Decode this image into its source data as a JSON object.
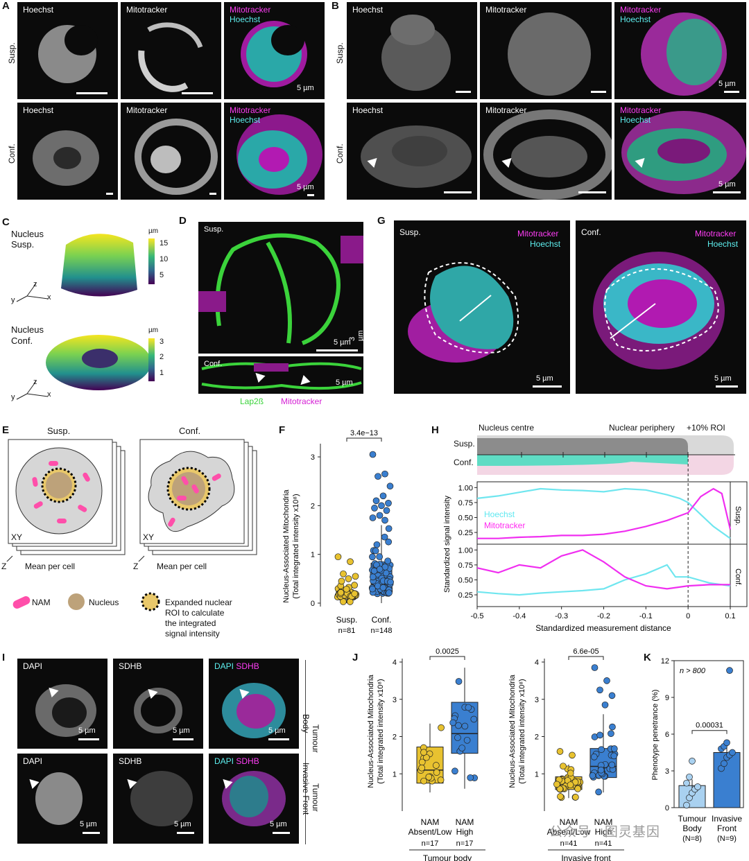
{
  "panels": {
    "A": {
      "letter": "A",
      "rows": [
        "Susp.",
        "Conf."
      ],
      "ch1": "Hoechst",
      "ch2": "Mitotracker",
      "merge_top": "Mitotracker",
      "merge_bot": "Hoechst",
      "scale": "5 µm"
    },
    "B": {
      "letter": "B",
      "rows": [
        "Susp.",
        "Conf."
      ],
      "ch1": "Hoechst",
      "ch2": "Mitotracker",
      "merge_top": "Mitotracker",
      "merge_bot": "Hoechst",
      "scale": "5 µm"
    },
    "C": {
      "letter": "C",
      "top_title": "Nucleus",
      "top_sub": "Susp.",
      "bot_title": "Nucleus",
      "bot_sub": "Conf.",
      "unit": "µm",
      "top_ticks": [
        "15",
        "10",
        "5"
      ],
      "bot_ticks": [
        "3",
        "2",
        "1"
      ],
      "axis_z": "z",
      "axis_y": "y",
      "axis_x": "x"
    },
    "D": {
      "letter": "D",
      "top": "Susp.",
      "bot": "Conf.",
      "scale_z": "3 µm",
      "scale_xy": "5 µm",
      "legend_green": "Lap2ß",
      "legend_magenta": "Mitotracker"
    },
    "G": {
      "letter": "G",
      "left": "Susp.",
      "right": "Conf.",
      "ch_mag": "Mitotracker",
      "ch_cy": "Hoechst",
      "scale": "5 µm"
    },
    "E": {
      "letter": "E",
      "left": "Susp.",
      "right": "Conf.",
      "xy": "XY",
      "z": "Z",
      "mean": "Mean per cell",
      "legend": {
        "nam": "NAM",
        "nucleus": "Nucleus",
        "roi_l1": "Expanded nuclear",
        "roi_l2": "ROI to calculate",
        "roi_l3": "the integrated",
        "roi_l4": "signal intensity"
      }
    },
    "F": {
      "letter": "F",
      "ylab1": "Nucleus-Associated Mitochondria",
      "ylab2": "(Total integrated intensity x10⁸)",
      "pvalue": "3.4e−13",
      "yticks": [
        "0",
        "1",
        "2",
        "3"
      ],
      "cat1": "Susp.",
      "n1": "n=81",
      "cat2": "Conf.",
      "n2": "n=148"
    },
    "H": {
      "letter": "H",
      "centre": "Nucleus centre",
      "periphery": "Nuclear periphery",
      "roi": "+10% ROI",
      "susp": "Susp.",
      "conf": "Conf.",
      "hoechst": "Hoechst",
      "mito": "Mitotracker",
      "ylab": "Standardized signal intensity",
      "xlab": "Standardized measurement distance",
      "yticks": [
        "1.00",
        "0.75",
        "0.50",
        "0.25"
      ],
      "xticks": [
        "-0.5",
        "-0.4",
        "-0.3",
        "-0.2",
        "-0.1",
        "0",
        "0.1"
      ]
    },
    "I": {
      "letter": "I",
      "c1": "DAPI",
      "c2": "SDHB",
      "m1": "DAPI",
      "m2": "SDHB",
      "scale": "5 µm",
      "row1a": "Tumour",
      "row1b": "Body",
      "row2a": "Tumour",
      "row2b": "Invasive Front"
    },
    "J": {
      "letter": "J",
      "ylab1": "Nucleus-Associated Mitochondria",
      "ylab2": "(Total integrated intensity x10⁸)",
      "yticks": [
        "1",
        "2",
        "3",
        "4"
      ],
      "left": {
        "p": "0.0025",
        "c1a": "NAM",
        "c1b": "Absent/Low",
        "n1": "n=17",
        "c2a": "NAM",
        "c2b": "High",
        "n2": "n=17",
        "group": "Tumour body"
      },
      "right": {
        "p": "6.6e-05",
        "c1a": "NAM",
        "c1b": "Absent/Low",
        "n1": "n=41",
        "c2a": "NAM",
        "c2b": "High",
        "n2": "n=41",
        "group": "Invasive front"
      }
    },
    "K": {
      "letter": "K",
      "ylab": "Phenotype penetrance (%)",
      "note": "n > 800",
      "p": "0.00031",
      "yticks": [
        "0",
        "3",
        "6",
        "9",
        "12"
      ],
      "c1a": "Tumour",
      "c1b": "Body",
      "n1": "(N=8)",
      "c2a": "Invasive",
      "c2b": "Front",
      "n2": "(N=9)"
    }
  },
  "watermark": "公众号 · 图灵基因",
  "chart_data": [
    {
      "type": "scatter",
      "title": "",
      "xlabel": "",
      "ylabel": "Nucleus-Associated Mitochondria (Total integrated intensity x10⁸)",
      "categories": [
        "Susp.",
        "Conf."
      ],
      "box": [
        {
          "q1": 0.12,
          "median": 0.17,
          "q3": 0.24,
          "low": 0.0,
          "high": 0.38
        },
        {
          "q1": 0.2,
          "median": 0.37,
          "q3": 0.82,
          "low": 0.0,
          "high": 1.6
        }
      ],
      "outliers": [
        [
          0.95,
          0.85,
          0.6,
          0.55,
          0.5,
          0.45
        ],
        [
          3.05,
          2.65,
          2.6,
          2.4,
          2.2,
          2.1,
          2.05,
          2.0,
          1.95,
          1.9,
          1.8,
          1.75,
          1.7
        ]
      ],
      "ylim": [
        0,
        3.2
      ],
      "colors": [
        "#e8c230",
        "#3a7fd0"
      ]
    },
    {
      "type": "line",
      "title": "",
      "xlabel": "Standardized measurement distance",
      "ylabel": "Standardized signal intensity",
      "xlim": [
        -0.5,
        0.1
      ],
      "ylim": [
        0.1,
        1.05
      ],
      "panels": [
        "Susp.",
        "Conf."
      ],
      "series": [
        {
          "name": "Hoechst",
          "panel": "Susp.",
          "x": [
            -0.5,
            -0.45,
            -0.4,
            -0.35,
            -0.3,
            -0.25,
            -0.2,
            -0.15,
            -0.1,
            -0.05,
            -0.02,
            0,
            0.03,
            0.06,
            0.1
          ],
          "y": [
            0.82,
            0.86,
            0.92,
            0.98,
            0.96,
            0.95,
            0.93,
            0.98,
            0.96,
            0.88,
            0.82,
            0.75,
            0.55,
            0.35,
            0.15
          ]
        },
        {
          "name": "Mitotracker",
          "panel": "Susp.",
          "x": [
            -0.5,
            -0.45,
            -0.4,
            -0.35,
            -0.3,
            -0.25,
            -0.2,
            -0.15,
            -0.1,
            -0.05,
            0,
            0.03,
            0.06,
            0.08,
            0.1
          ],
          "y": [
            0.15,
            0.15,
            0.17,
            0.18,
            0.2,
            0.2,
            0.22,
            0.27,
            0.35,
            0.45,
            0.58,
            0.85,
            0.98,
            0.9,
            0.3
          ]
        },
        {
          "name": "Hoechst",
          "panel": "Conf.",
          "x": [
            -0.5,
            -0.45,
            -0.4,
            -0.35,
            -0.3,
            -0.25,
            -0.2,
            -0.15,
            -0.1,
            -0.05,
            -0.03,
            0,
            0.05,
            0.1
          ],
          "y": [
            0.3,
            0.27,
            0.25,
            0.28,
            0.3,
            0.32,
            0.35,
            0.5,
            0.6,
            0.75,
            0.55,
            0.55,
            0.45,
            0.4
          ]
        },
        {
          "name": "Mitotracker",
          "panel": "Conf.",
          "x": [
            -0.5,
            -0.45,
            -0.4,
            -0.35,
            -0.3,
            -0.25,
            -0.2,
            -0.15,
            -0.1,
            -0.05,
            0,
            0.05,
            0.1
          ],
          "y": [
            0.7,
            0.62,
            0.75,
            0.7,
            0.9,
            1.0,
            0.8,
            0.55,
            0.4,
            0.35,
            0.4,
            0.42,
            0.42
          ]
        }
      ]
    },
    {
      "type": "scatter",
      "title": "",
      "xlabel": "",
      "ylabel": "Nucleus-Associated Mitochondria (Total integrated intensity x10⁸)",
      "categories": [
        "NAM Absent/Low",
        "NAM High"
      ],
      "group": "Tumour body",
      "box": [
        {
          "q1": 0.75,
          "median": 1.1,
          "q3": 1.72,
          "low": 0.5,
          "high": 2.35
        },
        {
          "q1": 1.55,
          "median": 2.08,
          "q3": 2.92,
          "low": 0.6,
          "high": 3.85
        }
      ],
      "ylim": [
        0.5,
        4
      ],
      "colors": [
        "#e8c230",
        "#3a7fd0"
      ]
    },
    {
      "type": "scatter",
      "title": "",
      "xlabel": "",
      "ylabel": "Nucleus-Associated Mitochondria (Total integrated intensity x10⁸)",
      "categories": [
        "NAM Absent/Low",
        "NAM High"
      ],
      "group": "Invasive front",
      "box": [
        {
          "q1": 0.58,
          "median": 0.75,
          "q3": 0.92,
          "low": 0.35,
          "high": 1.25
        },
        {
          "q1": 0.9,
          "median": 1.2,
          "q3": 1.68,
          "low": 0.5,
          "high": 2.6
        }
      ],
      "outliers": [
        [
          1.6,
          1.5
        ],
        [
          3.85,
          3.5,
          3.25,
          3.1,
          2.85
        ]
      ],
      "ylim": [
        0,
        4
      ],
      "colors": [
        "#e8c230",
        "#3a7fd0"
      ]
    },
    {
      "type": "bar",
      "title": "",
      "xlabel": "",
      "ylabel": "Phenotype penetrance (%)",
      "categories": [
        "Tumour Body",
        "Invasive Front"
      ],
      "values": [
        1.8,
        4.5
      ],
      "points": [
        [
          0.2,
          0.8,
          1.2,
          1.5,
          1.7,
          2.0,
          2.5,
          3.8
        ],
        [
          3.2,
          3.6,
          4.1,
          4.3,
          4.5,
          4.8,
          5.0,
          5.3,
          11.2
        ]
      ],
      "ylim": [
        0,
        12
      ],
      "colors": [
        "#a9d1f0",
        "#3a7fd0"
      ]
    }
  ]
}
